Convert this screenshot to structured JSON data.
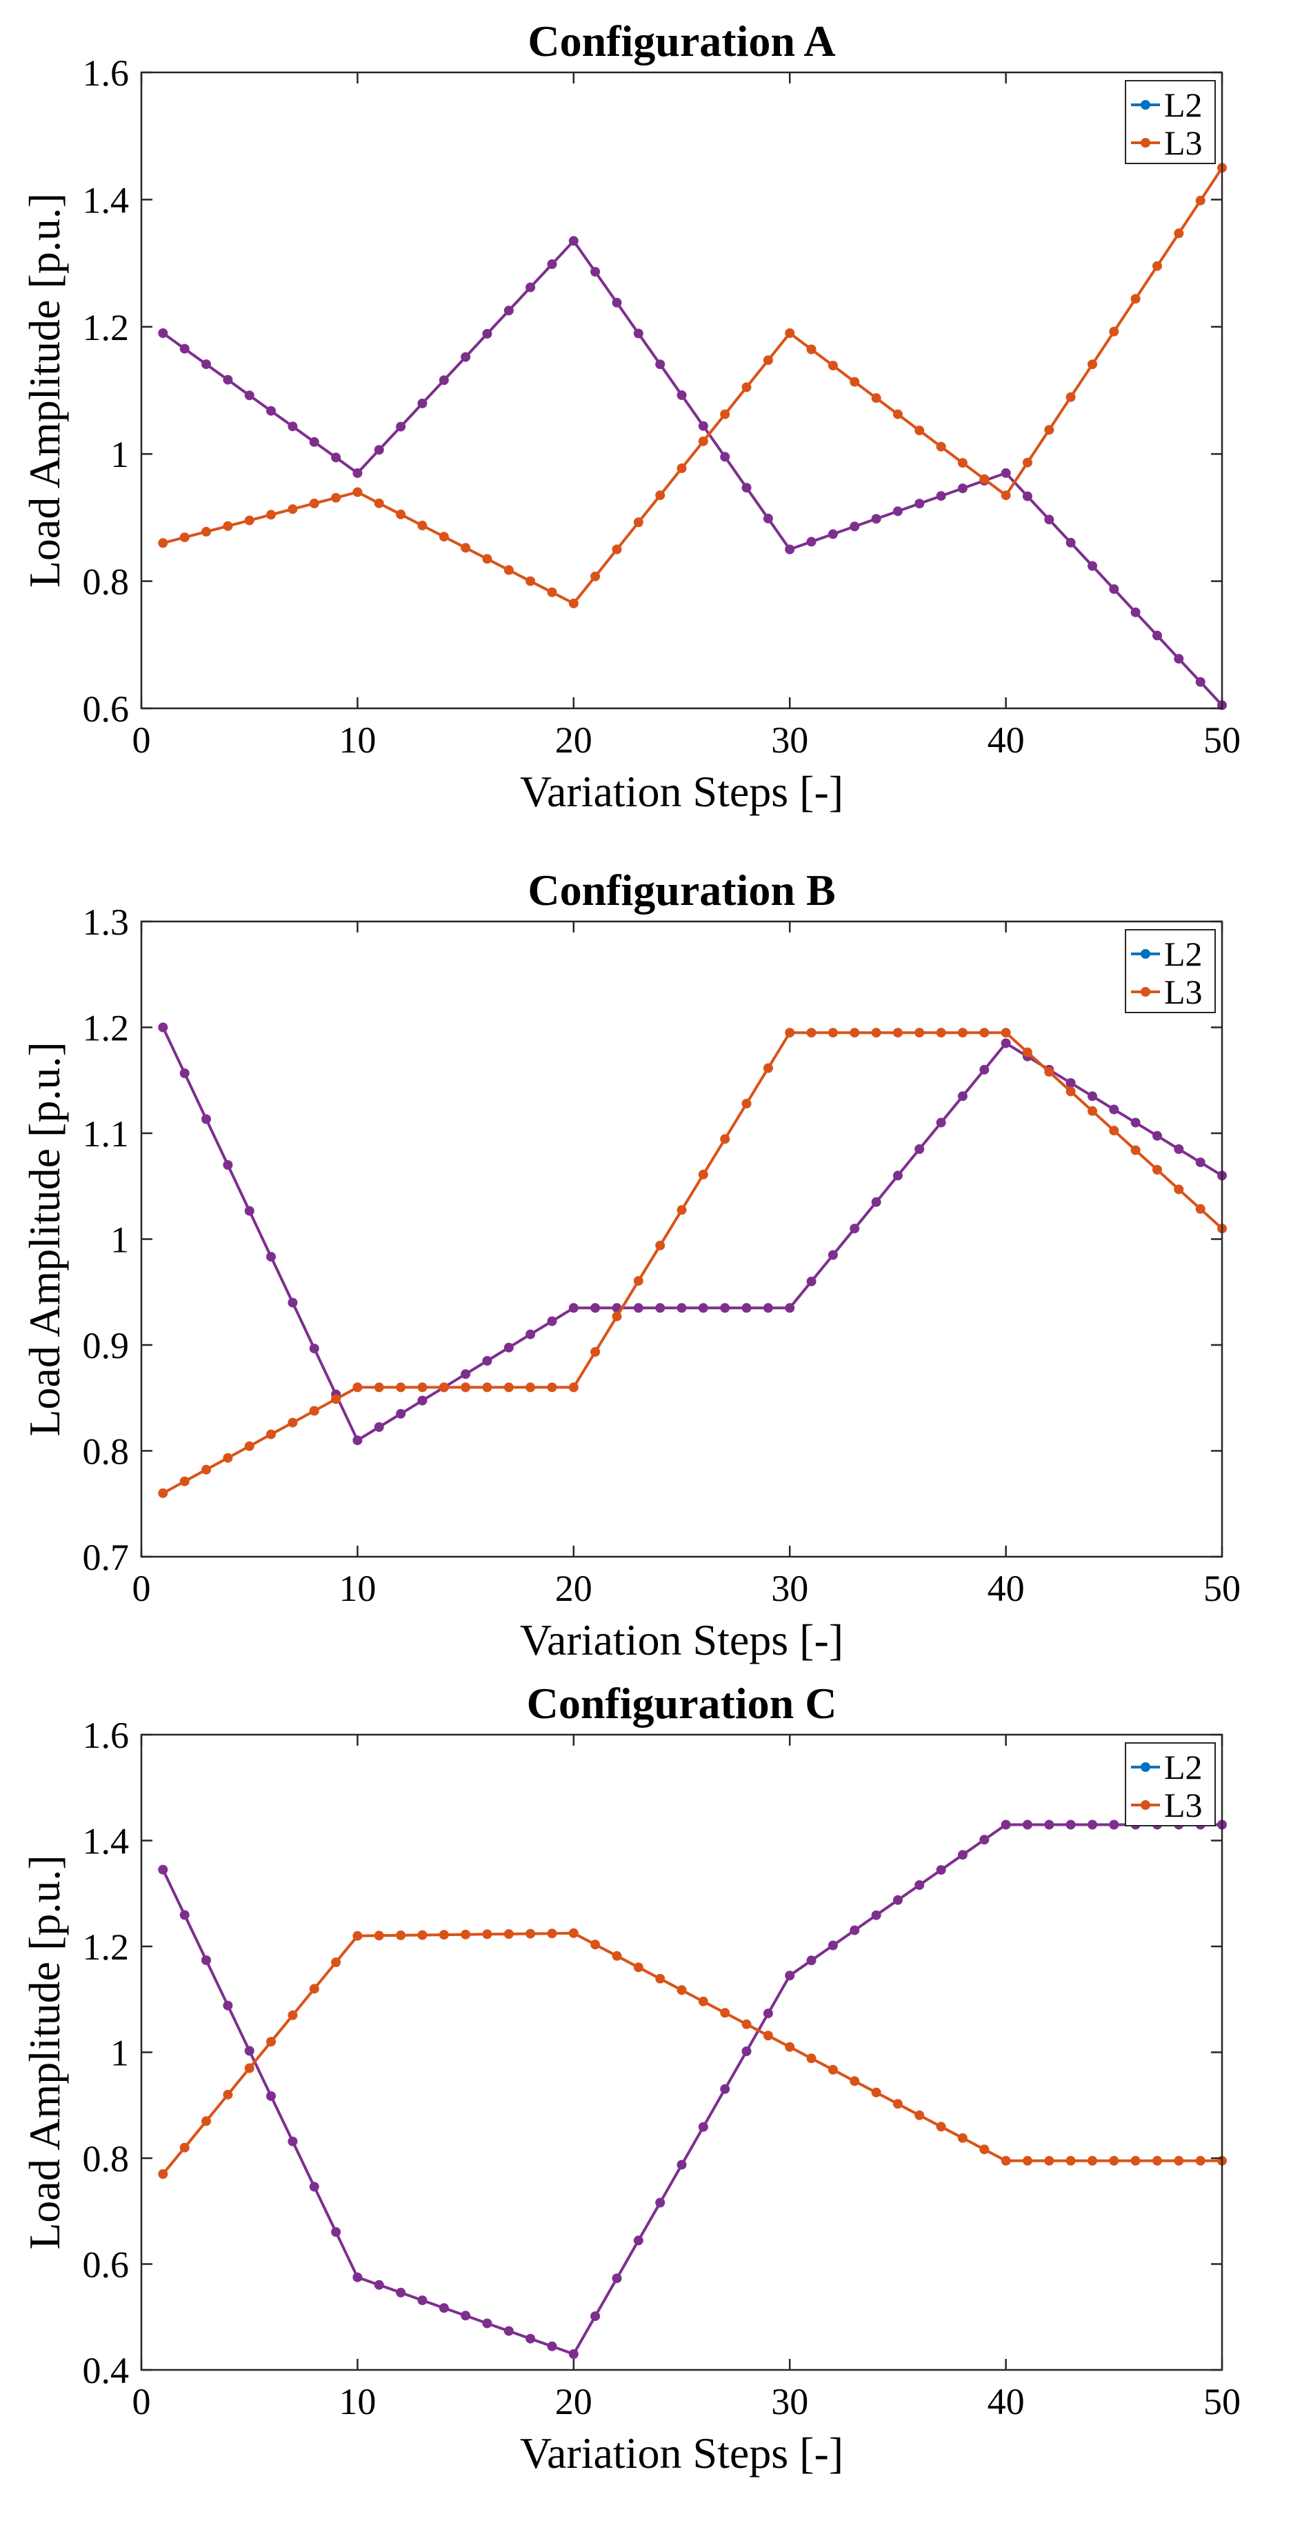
{
  "colors": {
    "L2": "#7E2F8E",
    "L3": "#D95319",
    "L2_legend": "#0072BD",
    "axis": "#262626"
  },
  "chart_data": [
    {
      "type": "line",
      "title": "Configuration A",
      "xlabel": "Variation Steps [-]",
      "ylabel": "Load Amplitude [p.u.]",
      "xlim": [
        0,
        50
      ],
      "ylim": [
        0.6,
        1.6
      ],
      "xticks": [
        0,
        10,
        20,
        30,
        40,
        50
      ],
      "yticks": [
        0.6,
        0.8,
        1,
        1.2,
        1.4,
        1.6
      ],
      "xtick_labels": [
        "0",
        "10",
        "20",
        "30",
        "40",
        "50"
      ],
      "ytick_labels": [
        "0.6",
        "0.8",
        "1",
        "1.2",
        "1.4",
        "1.6"
      ],
      "grid": false,
      "legend": "top-right",
      "series": [
        {
          "name": "L2",
          "knots": [
            [
              1,
              1.19
            ],
            [
              10,
              0.97
            ],
            [
              20,
              1.335
            ],
            [
              30,
              0.85
            ],
            [
              40,
              0.97
            ],
            [
              50,
              0.605
            ]
          ]
        },
        {
          "name": "L3",
          "knots": [
            [
              1,
              0.86
            ],
            [
              10,
              0.94
            ],
            [
              20,
              0.765
            ],
            [
              30,
              1.19
            ],
            [
              40,
              0.935
            ],
            [
              50,
              1.45
            ]
          ]
        }
      ]
    },
    {
      "type": "line",
      "title": "Configuration B",
      "xlabel": "Variation Steps [-]",
      "ylabel": "Load Amplitude [p.u.]",
      "xlim": [
        0,
        50
      ],
      "ylim": [
        0.7,
        1.3
      ],
      "xticks": [
        0,
        10,
        20,
        30,
        40,
        50
      ],
      "yticks": [
        0.7,
        0.8,
        0.9,
        1,
        1.1,
        1.2,
        1.3
      ],
      "xtick_labels": [
        "0",
        "10",
        "20",
        "30",
        "40",
        "50"
      ],
      "ytick_labels": [
        "0.7",
        "0.8",
        "0.9",
        "1",
        "1.1",
        "1.2",
        "1.3"
      ],
      "grid": false,
      "legend": "top-right",
      "series": [
        {
          "name": "L2",
          "knots": [
            [
              1,
              1.2
            ],
            [
              10,
              0.81
            ],
            [
              20,
              0.935
            ],
            [
              30,
              0.935
            ],
            [
              40,
              1.185
            ],
            [
              50,
              1.06
            ]
          ]
        },
        {
          "name": "L3",
          "knots": [
            [
              1,
              0.76
            ],
            [
              10,
              0.86
            ],
            [
              20,
              0.86
            ],
            [
              30,
              1.195
            ],
            [
              40,
              1.195
            ],
            [
              50,
              1.01
            ]
          ]
        }
      ]
    },
    {
      "type": "line",
      "title": "Configuration C",
      "xlabel": "Variation Steps [-]",
      "ylabel": "Load Amplitude [p.u.]",
      "xlim": [
        0,
        50
      ],
      "ylim": [
        0.4,
        1.6
      ],
      "xticks": [
        0,
        10,
        20,
        30,
        40,
        50
      ],
      "yticks": [
        0.4,
        0.6,
        0.8,
        1,
        1.2,
        1.4,
        1.6
      ],
      "xtick_labels": [
        "0",
        "10",
        "20",
        "30",
        "40",
        "50"
      ],
      "ytick_labels": [
        "0.4",
        "0.6",
        "0.8",
        "1",
        "1.2",
        "1.4",
        "1.6"
      ],
      "grid": false,
      "legend": "top-right",
      "series": [
        {
          "name": "L2",
          "knots": [
            [
              1,
              1.345
            ],
            [
              10,
              0.575
            ],
            [
              20,
              0.43
            ],
            [
              30,
              1.145
            ],
            [
              40,
              1.43
            ],
            [
              50,
              1.43
            ]
          ]
        },
        {
          "name": "L3",
          "knots": [
            [
              1,
              0.77
            ],
            [
              10,
              1.22
            ],
            [
              20,
              1.225
            ],
            [
              30,
              1.01
            ],
            [
              40,
              0.795
            ],
            [
              50,
              0.795
            ]
          ]
        }
      ]
    }
  ]
}
